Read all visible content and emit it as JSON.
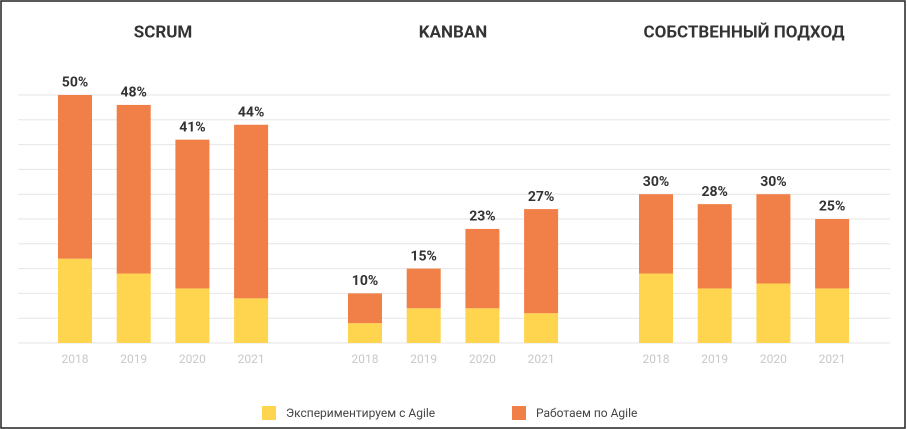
{
  "chart_data": [
    {
      "type": "bar",
      "stacked": true,
      "title": "SCRUM",
      "categories": [
        "2018",
        "2019",
        "2020",
        "2021"
      ],
      "series": [
        {
          "name": "Экспериментируем с Agile",
          "color": "#ffd54f",
          "values": [
            17,
            14,
            11,
            9
          ]
        },
        {
          "name": "Работаем по Agile",
          "color": "#f08048",
          "values": [
            33,
            34,
            30,
            35
          ]
        }
      ],
      "totals": {
        "values": [
          50,
          48,
          41,
          44
        ],
        "value_labels": [
          "50%",
          "48%",
          "41%",
          "44%"
        ]
      },
      "ylim": [
        0,
        50
      ],
      "yticks": [
        0,
        5,
        10,
        15,
        20,
        25,
        30,
        35,
        40,
        45,
        50
      ],
      "grid": true
    },
    {
      "type": "bar",
      "stacked": true,
      "title": "KANBAN",
      "categories": [
        "2018",
        "2019",
        "2020",
        "2021"
      ],
      "series": [
        {
          "name": "Экспериментируем с Agile",
          "color": "#ffd54f",
          "values": [
            4,
            7,
            7,
            6
          ]
        },
        {
          "name": "Работаем по Agile",
          "color": "#f08048",
          "values": [
            6,
            8,
            16,
            21
          ]
        }
      ],
      "totals": {
        "values": [
          10,
          15,
          23,
          27
        ],
        "value_labels": [
          "10%",
          "15%",
          "23%",
          "27%"
        ]
      },
      "ylim": [
        0,
        50
      ],
      "yticks": [
        0,
        5,
        10,
        15,
        20,
        25,
        30,
        35,
        40,
        45,
        50
      ],
      "grid": true
    },
    {
      "type": "bar",
      "stacked": true,
      "title": "СОБСТВЕННЫЙ ПОДХОД",
      "categories": [
        "2018",
        "2019",
        "2020",
        "2021"
      ],
      "series": [
        {
          "name": "Экспериментируем с Agile",
          "color": "#ffd54f",
          "values": [
            14,
            11,
            12,
            11
          ]
        },
        {
          "name": "Работаем по Agile",
          "color": "#f08048",
          "values": [
            16,
            17,
            18,
            14
          ]
        }
      ],
      "totals": {
        "values": [
          30,
          28,
          30,
          25
        ],
        "value_labels": [
          "30%",
          "28%",
          "30%",
          "25%"
        ]
      },
      "ylim": [
        0,
        50
      ],
      "yticks": [
        0,
        5,
        10,
        15,
        20,
        25,
        30,
        35,
        40,
        45,
        50
      ],
      "grid": true
    }
  ]
}
